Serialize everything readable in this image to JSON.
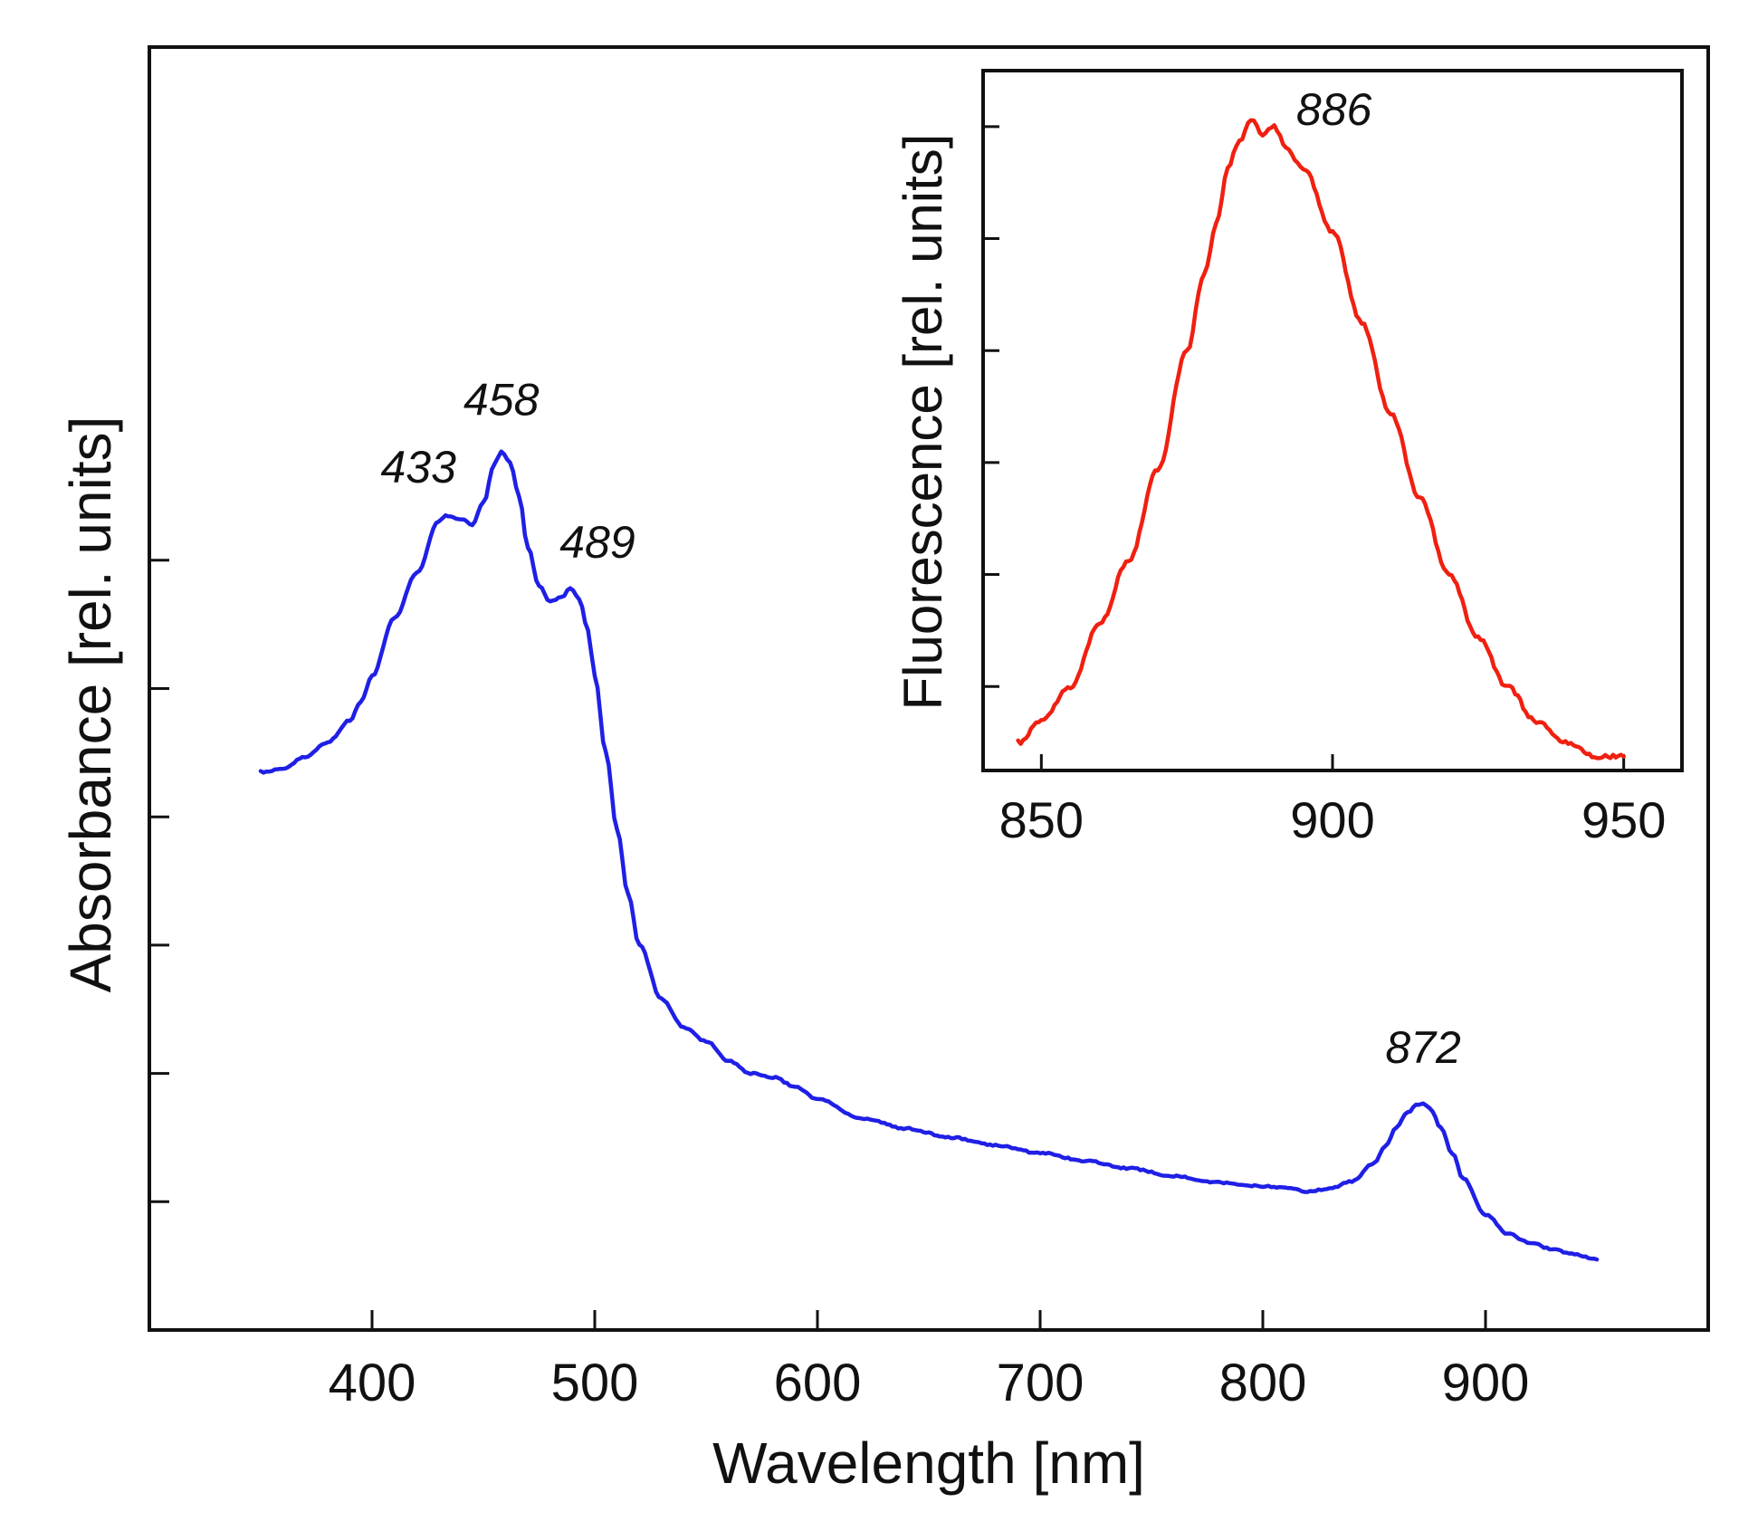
{
  "chart_data": [
    {
      "type": "line",
      "xlabel": "Wavelength [nm]",
      "ylabel": "Absorbance [rel. units]",
      "xlim": [
        300,
        1000
      ],
      "ylim": [
        0,
        1.0
      ],
      "x_ticks": [
        400,
        500,
        600,
        700,
        800,
        900
      ],
      "y_ticks": [
        0.1,
        0.2,
        0.3,
        0.4,
        0.5,
        0.6
      ],
      "y_tick_labels_shown": false,
      "grid": false,
      "series": [
        {
          "color": "#1f1fe6",
          "x": [
            350,
            360,
            370,
            380,
            390,
            395,
            400,
            410,
            420,
            430,
            433,
            440,
            445,
            450,
            455,
            458,
            462,
            466,
            470,
            475,
            480,
            485,
            489,
            493,
            497,
            500,
            505,
            510,
            515,
            520,
            530,
            540,
            550,
            560,
            570,
            580,
            590,
            600,
            620,
            640,
            660,
            680,
            700,
            720,
            740,
            760,
            780,
            800,
            810,
            820,
            830,
            840,
            850,
            855,
            860,
            865,
            870,
            872,
            875,
            880,
            885,
            890,
            900,
            910,
            920,
            930,
            940,
            950
          ],
          "y": [
            0.435,
            0.437,
            0.447,
            0.458,
            0.475,
            0.49,
            0.51,
            0.555,
            0.59,
            0.63,
            0.635,
            0.632,
            0.628,
            0.645,
            0.675,
            0.685,
            0.676,
            0.65,
            0.61,
            0.58,
            0.568,
            0.571,
            0.578,
            0.57,
            0.545,
            0.51,
            0.45,
            0.39,
            0.34,
            0.3,
            0.258,
            0.236,
            0.225,
            0.21,
            0.2,
            0.197,
            0.19,
            0.18,
            0.165,
            0.157,
            0.15,
            0.144,
            0.138,
            0.132,
            0.126,
            0.12,
            0.115,
            0.112,
            0.111,
            0.108,
            0.11,
            0.116,
            0.13,
            0.143,
            0.158,
            0.17,
            0.176,
            0.177,
            0.173,
            0.158,
            0.138,
            0.118,
            0.09,
            0.075,
            0.068,
            0.063,
            0.059,
            0.055
          ]
        }
      ],
      "annotations": [
        {
          "text": "433",
          "x": 433,
          "y": 0.635
        },
        {
          "text": "458",
          "x": 458,
          "y": 0.685
        },
        {
          "text": "489",
          "x": 489,
          "y": 0.578
        },
        {
          "text": "872",
          "x": 872,
          "y": 0.177
        }
      ]
    },
    {
      "type": "line",
      "inset": true,
      "xlabel": "",
      "ylabel": "Fluorescence [rel. units]",
      "xlim": [
        840,
        960
      ],
      "ylim": [
        0,
        1.0
      ],
      "x_ticks": [
        850,
        900,
        950
      ],
      "y_ticks": [
        0.12,
        0.28,
        0.44,
        0.6,
        0.76,
        0.92
      ],
      "y_tick_labels_shown": false,
      "grid": false,
      "series": [
        {
          "color": "#f02010",
          "x": [
            846,
            850,
            855,
            860,
            865,
            870,
            875,
            878,
            880,
            882,
            884,
            886,
            888,
            890,
            892,
            895,
            900,
            905,
            910,
            915,
            920,
            925,
            930,
            935,
            940,
            945,
            950
          ],
          "y": [
            0.04,
            0.07,
            0.12,
            0.21,
            0.3,
            0.43,
            0.6,
            0.71,
            0.78,
            0.86,
            0.9,
            0.93,
            0.91,
            0.92,
            0.89,
            0.86,
            0.77,
            0.64,
            0.51,
            0.39,
            0.28,
            0.19,
            0.12,
            0.07,
            0.04,
            0.02,
            0.02
          ]
        }
      ],
      "annotations": [
        {
          "text": "886",
          "x": 886,
          "y": 0.93
        }
      ]
    }
  ]
}
